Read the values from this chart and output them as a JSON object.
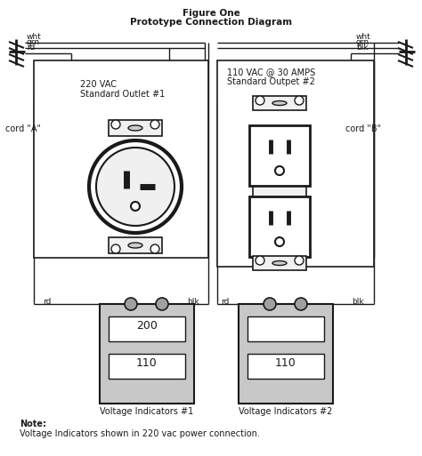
{
  "title_line1": "Figure One",
  "title_line2": "Prototype Connection Diagram",
  "bg": "#ffffff",
  "lc": "#1a1a1a",
  "tc": "#1a1a1a",
  "cord_a": "cord \"A\"",
  "cord_b": "cord \"B\"",
  "o1l1": "220 VAC",
  "o1l2": "Standard Outlet #1",
  "o2l1": "110 VAC @ 30 AMPS",
  "o2l2": "Standard Outpet #2",
  "vi1": "Voltage Indicators #1",
  "vi2": "Voltage Indicators #2",
  "note1": "Note:",
  "note2": "Voltage Indicators shown in 220 vac power connection."
}
